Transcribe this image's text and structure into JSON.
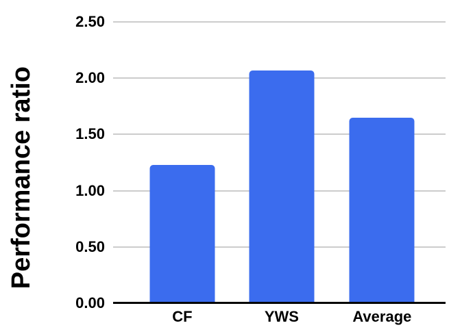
{
  "chart_data": {
    "type": "bar",
    "title": "",
    "categories": [
      "CF",
      "YWS",
      "Average"
    ],
    "values": [
      1.23,
      2.07,
      1.65
    ],
    "series": [
      {
        "name": "Performance ratio",
        "values": [
          1.23,
          2.07,
          1.65
        ]
      }
    ],
    "xlabel": "",
    "ylabel": "Performance ratio",
    "ylim": [
      0,
      2.5
    ],
    "yticks": [
      {
        "value": 0.0,
        "label": "0.00"
      },
      {
        "value": 0.5,
        "label": "0.50"
      },
      {
        "value": 1.0,
        "label": "1.00"
      },
      {
        "value": 1.5,
        "label": "1.50"
      },
      {
        "value": 2.0,
        "label": "2.00"
      },
      {
        "value": 2.5,
        "label": "2.50"
      }
    ],
    "grid": true,
    "legend_position": "none",
    "bar_color": "#3B6CEE",
    "gridline_color": "#CCCCCC",
    "axis_color": "#000000",
    "text_color": "#000000",
    "background_color": "#FFFFFF"
  }
}
